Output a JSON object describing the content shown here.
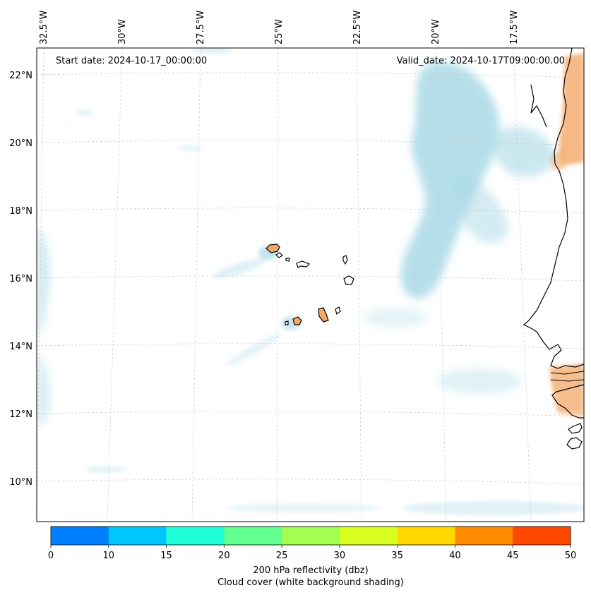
{
  "map": {
    "start_date": "Start date: 2024-10-17_00:00:00",
    "valid_date": "Valid_date: 2024-10-17T09:00:00.00",
    "lon_labels": [
      "32.5°W",
      "30°W",
      "27.5°W",
      "25°W",
      "22.5°W",
      "20°W",
      "17.5°W"
    ],
    "lat_labels": [
      "22°N",
      "20°N",
      "18°N",
      "16°N",
      "14°N",
      "12°N",
      "10°N"
    ]
  },
  "colorbar": {
    "ticks": [
      "0",
      "10",
      "15",
      "20",
      "25",
      "30",
      "35",
      "40",
      "45",
      "50"
    ],
    "colors": [
      "#0080ff",
      "#00c8ff",
      "#20ffd8",
      "#60ff90",
      "#a0ff50",
      "#d8ff20",
      "#ffd800",
      "#ff8c00",
      "#ff4800"
    ],
    "label_line1": "200 hPa reflectivity (dbz)",
    "label_line2": "Cloud cover (white background shading)"
  },
  "style": {
    "cloud_color": "#a9d9e6",
    "land_color": "#f4a868",
    "coast_color": "#000000"
  }
}
